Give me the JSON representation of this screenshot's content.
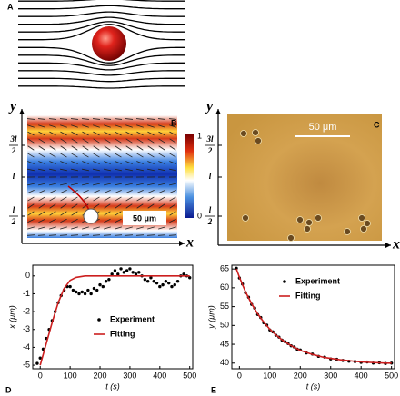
{
  "panel_labels": [
    "A",
    "B",
    "C",
    "D",
    "E"
  ],
  "panel_b": {
    "y_label": "y",
    "x_label": "x",
    "yticks": [
      {
        "top": "3l",
        "bottom": "2"
      },
      {
        "top": "l"
      },
      {
        "top": "l",
        "bottom": "2"
      }
    ],
    "scale_bar": "50 μm",
    "colorbar_ticks": [
      1,
      0
    ]
  },
  "panel_c": {
    "y_label": "y",
    "x_label": "x",
    "yticks": [
      {
        "top": "3l",
        "bottom": "2"
      },
      {
        "top": "l"
      },
      {
        "top": "l",
        "bottom": "2"
      }
    ],
    "scale_bar": "50 μm"
  },
  "chart_data": [
    {
      "type": "scatter",
      "x_label": "t (s)",
      "y_label": "x (μm)",
      "xlim": [
        -25,
        510
      ],
      "xticks": [
        0,
        100,
        200,
        300,
        400,
        500
      ],
      "ylim": [
        -5.2,
        0.6
      ],
      "yticks": [
        -5,
        -4,
        -3,
        -2,
        -1,
        0
      ],
      "legend": "center right",
      "series": [
        {
          "name": "Experiment",
          "color": "#000000",
          "mode": "points",
          "x": [
            -10,
            0,
            10,
            20,
            30,
            40,
            50,
            60,
            70,
            80,
            90,
            100,
            110,
            120,
            130,
            140,
            150,
            160,
            170,
            180,
            190,
            200,
            210,
            220,
            230,
            240,
            250,
            260,
            270,
            280,
            290,
            300,
            310,
            320,
            330,
            340,
            350,
            360,
            370,
            380,
            390,
            400,
            410,
            420,
            430,
            440,
            450,
            460,
            470,
            480,
            490,
            500
          ],
          "values": [
            -4.9,
            -4.6,
            -4.1,
            -3.5,
            -3.0,
            -2.5,
            -2.0,
            -1.5,
            -1.1,
            -0.8,
            -0.6,
            -0.6,
            -0.8,
            -0.9,
            -1.0,
            -0.9,
            -1.0,
            -0.8,
            -1.0,
            -0.7,
            -0.8,
            -0.5,
            -0.6,
            -0.3,
            -0.2,
            0.1,
            0.3,
            0.1,
            0.4,
            0.2,
            0.3,
            0.4,
            0.2,
            0.1,
            0.2,
            0.0,
            -0.2,
            -0.3,
            -0.1,
            -0.3,
            -0.4,
            -0.6,
            -0.5,
            -0.3,
            -0.4,
            -0.6,
            -0.5,
            -0.3,
            0.0,
            0.1,
            0.0,
            -0.1
          ]
        },
        {
          "name": "Fitting",
          "color": "#cc1f1f",
          "mode": "line",
          "x": [
            0,
            20,
            40,
            60,
            80,
            100,
            120,
            150,
            200,
            300,
            400,
            500
          ],
          "values": [
            -5,
            -3.8,
            -2.6,
            -1.5,
            -0.7,
            -0.25,
            -0.08,
            0,
            0,
            0,
            0,
            0
          ]
        }
      ]
    },
    {
      "type": "scatter",
      "x_label": "t (s)",
      "y_label": "y (μm)",
      "xlim": [
        -25,
        510
      ],
      "xticks": [
        0,
        100,
        200,
        300,
        400,
        500
      ],
      "ylim": [
        38.5,
        66
      ],
      "yticks": [
        40,
        45,
        50,
        55,
        60,
        65
      ],
      "legend": "upper right",
      "series": [
        {
          "name": "Experiment",
          "color": "#000000",
          "mode": "points",
          "x": [
            -10,
            0,
            10,
            20,
            30,
            40,
            50,
            60,
            70,
            80,
            90,
            100,
            110,
            120,
            130,
            140,
            150,
            160,
            170,
            180,
            190,
            200,
            220,
            240,
            260,
            280,
            300,
            320,
            340,
            360,
            380,
            400,
            420,
            440,
            460,
            480,
            500
          ],
          "values": [
            65.2,
            62.6,
            61.0,
            58.7,
            57.5,
            55.6,
            54.6,
            52.9,
            52.1,
            50.7,
            50.1,
            48.8,
            48.3,
            47.4,
            46.9,
            46.1,
            45.7,
            45.2,
            44.6,
            44.3,
            43.7,
            43.5,
            42.7,
            42.4,
            41.8,
            41.6,
            41.1,
            41.0,
            40.7,
            40.5,
            40.4,
            40.2,
            40.3,
            40.0,
            40.1,
            39.9,
            40.0
          ]
        },
        {
          "name": "Fitting",
          "color": "#cc1f1f",
          "mode": "line",
          "x": [
            -10,
            0,
            20,
            40,
            60,
            80,
            100,
            120,
            140,
            160,
            180,
            200,
            240,
            280,
            330,
            400,
            480,
            500
          ],
          "values": [
            65.0,
            62.8,
            58.9,
            55.8,
            53.1,
            50.9,
            49.0,
            47.5,
            46.2,
            45.1,
            44.2,
            43.4,
            42.3,
            41.5,
            40.9,
            40.3,
            40.0,
            40.0
          ]
        }
      ]
    }
  ]
}
